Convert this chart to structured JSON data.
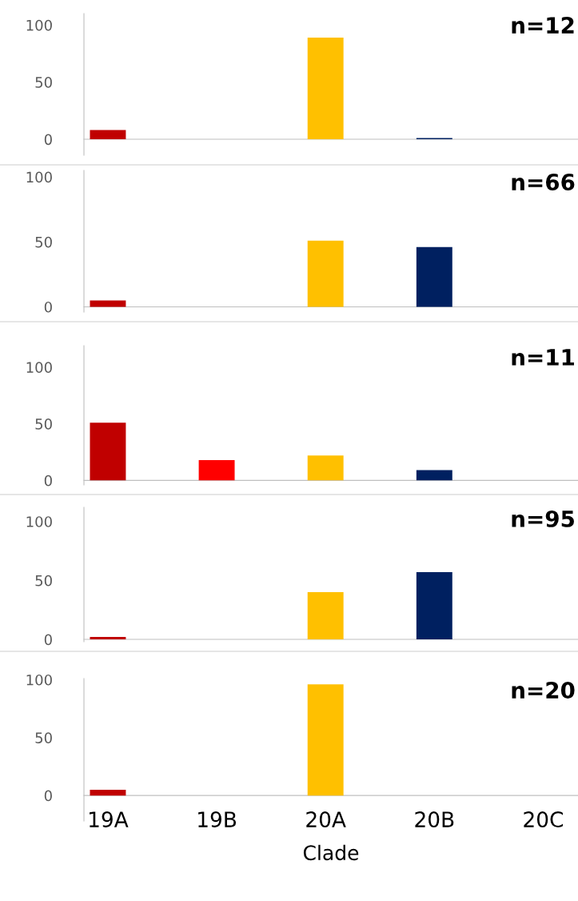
{
  "chart_data": [
    {
      "type": "bar",
      "categories": [
        null,
        null,
        null,
        null,
        null
      ],
      "values": [
        8,
        0,
        89,
        1,
        0
      ],
      "colors": [
        "#c00000",
        "#ff0000",
        "#ffc000",
        "#002060",
        "#002060"
      ],
      "ylim": [
        -14,
        110
      ],
      "yticks": [
        0,
        50,
        100
      ],
      "annotations": [
        "n=12"
      ],
      "tick_labels": "y"
    },
    {
      "type": "bar",
      "categories": [
        null,
        null,
        null,
        null,
        null
      ],
      "values": [
        5,
        0,
        51,
        46,
        0
      ],
      "colors": [
        "#c00000",
        "#ff0000",
        "#ffc000",
        "#002060",
        "#002060"
      ],
      "ylim": [
        -4,
        105
      ],
      "yticks": [
        0,
        50,
        100
      ],
      "annotations": [
        "n=66"
      ],
      "tick_labels": "y"
    },
    {
      "type": "bar",
      "categories": [
        null,
        null,
        null,
        null,
        null
      ],
      "values": [
        51,
        18,
        22,
        9,
        0
      ],
      "colors": [
        "#c00000",
        "#ff0000",
        "#ffc000",
        "#002060",
        "#002060"
      ],
      "ylim": [
        -4,
        119
      ],
      "yticks": [
        0,
        50,
        100
      ],
      "annotations": [
        "n=11"
      ],
      "tick_labels": "y"
    },
    {
      "type": "bar",
      "categories": [
        null,
        null,
        null,
        null,
        null
      ],
      "values": [
        2,
        0,
        40,
        57,
        0
      ],
      "colors": [
        "#c00000",
        "#ff0000",
        "#ffc000",
        "#002060",
        "#002060"
      ],
      "ylim": [
        -2,
        112
      ],
      "yticks": [
        0,
        50,
        100
      ],
      "annotations": [
        "n=95"
      ],
      "tick_labels": "y"
    },
    {
      "type": "bar",
      "categories": [
        "19A",
        "19B",
        "20A",
        "20B",
        "20C"
      ],
      "values": [
        5,
        0,
        96,
        0,
        0
      ],
      "colors": [
        "#c00000",
        "#ff0000",
        "#ffc000",
        "#002060",
        "#002060"
      ],
      "ylim": [
        -22,
        101
      ],
      "yticks": [
        0,
        50,
        100
      ],
      "xlabel": "Clade",
      "annotations": [
        "n=20"
      ]
    }
  ]
}
